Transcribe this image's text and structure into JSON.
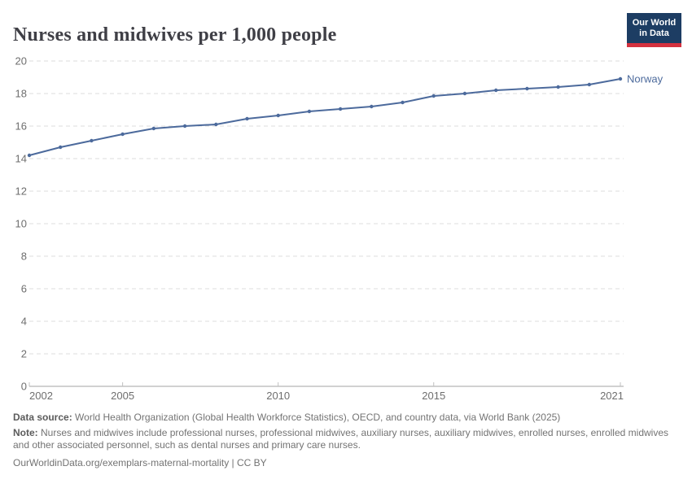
{
  "header": {
    "title": "Nurses and midwives per 1,000 people",
    "logo": {
      "line1": "Our World",
      "line2": "in Data",
      "bg_color": "#1d3d63",
      "stripe_color": "#d4313e"
    }
  },
  "chart_data": {
    "type": "line",
    "title": "Nurses and midwives per 1,000 people",
    "xlabel": "",
    "ylabel": "",
    "xlim": [
      2002,
      2021
    ],
    "ylim": [
      0,
      20
    ],
    "grid": "horizontal-dashed",
    "legend_position": "end-of-line",
    "xticks": [
      2002,
      2005,
      2010,
      2015,
      2021
    ],
    "yticks": [
      0,
      2,
      4,
      6,
      8,
      10,
      12,
      14,
      16,
      18,
      20
    ],
    "series": [
      {
        "name": "Norway",
        "color": "#4c6a9c",
        "x": [
          2002,
          2003,
          2004,
          2005,
          2006,
          2007,
          2008,
          2009,
          2010,
          2011,
          2012,
          2013,
          2014,
          2015,
          2016,
          2017,
          2018,
          2019,
          2020,
          2021
        ],
        "values": [
          14.2,
          14.7,
          15.1,
          15.5,
          15.85,
          16.0,
          16.1,
          16.45,
          16.65,
          16.9,
          17.05,
          17.2,
          17.45,
          17.85,
          18.0,
          18.2,
          18.3,
          18.4,
          18.55,
          18.9
        ]
      }
    ]
  },
  "footer": {
    "datasource_label": "Data source:",
    "datasource_text": " World Health Organization (Global Health Workforce Statistics), OECD, and country data, via World Bank (2025)",
    "note_label": "Note:",
    "note_text": " Nurses and midwives include professional nurses, professional midwives, auxiliary nurses, auxiliary midwives, enrolled nurses, enrolled midwives and other associated personnel, such as dental nurses and primary care nurses.",
    "license_text": "OurWorldinData.org/exemplars-maternal-mortality | CC BY"
  },
  "style": {
    "gridline_color": "#dcdcdc",
    "axis_color": "#a3a3a3",
    "tick_color": "#c0c0c0",
    "tick_label_color": "#6e6e6e"
  }
}
